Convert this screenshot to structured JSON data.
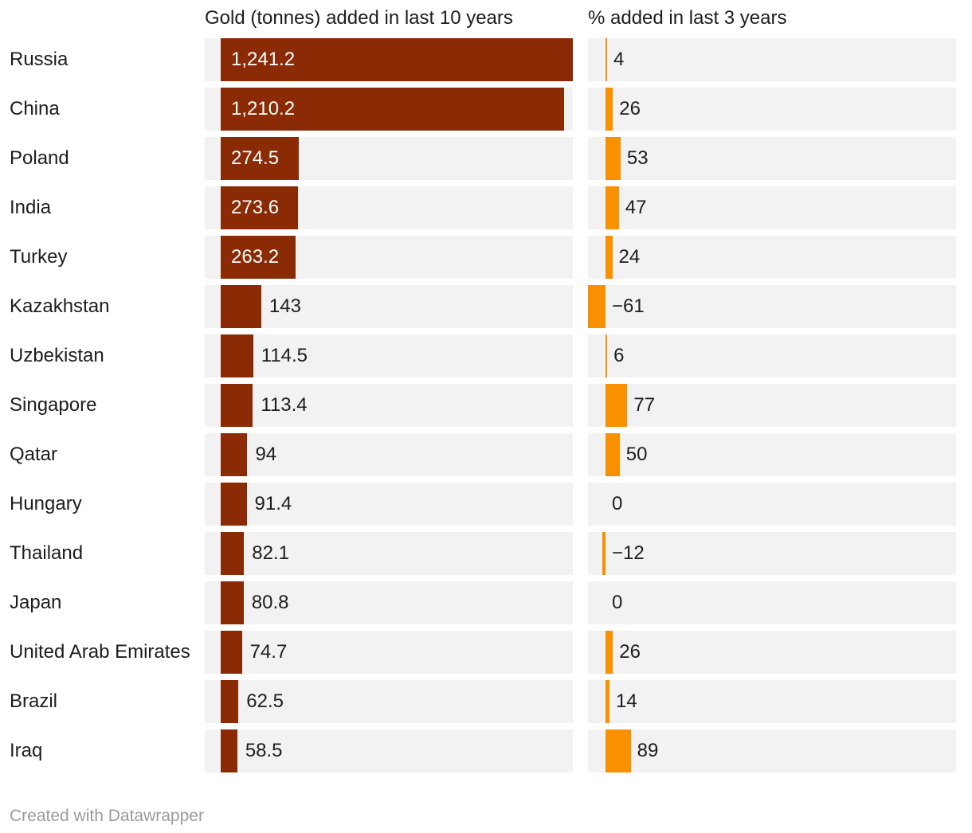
{
  "headers": {
    "col1": "Gold (tonnes) added in last 10 years",
    "col2": "% added in last 3 years"
  },
  "footer": {
    "credit": "Created with Datawrapper"
  },
  "colors": {
    "gold_bar": "#8a2b06",
    "pct_bar": "#f89000",
    "track": "#f2f2f2",
    "text": "#1d1d1d",
    "bar_label_inside": "#ffffff",
    "footer_text": "#9b9b9b"
  },
  "chart_data": {
    "type": "bar",
    "orientation": "horizontal",
    "variant": "split-bars-table",
    "grid": false,
    "legend_position": "column-headers",
    "categories": [
      "Russia",
      "China",
      "Poland",
      "India",
      "Turkey",
      "Kazakhstan",
      "Uzbekistan",
      "Singapore",
      "Qatar",
      "Hungary",
      "Thailand",
      "Japan",
      "United Arab Emirates",
      "Brazil",
      "Iraq"
    ],
    "series": [
      {
        "name": "Gold (tonnes) added in last 10 years",
        "color": "#8a2b06",
        "values": [
          1241.2,
          1210.2,
          274.5,
          273.6,
          263.2,
          143,
          114.5,
          113.4,
          94,
          91.4,
          82.1,
          80.8,
          74.7,
          62.5,
          58.5
        ],
        "labels": [
          "1,241.2",
          "1,210.2",
          "274.5",
          "273.6",
          "263.2",
          "143",
          "114.5",
          "113.4",
          "94",
          "91.4",
          "82.1",
          "80.8",
          "74.7",
          "62.5",
          "58.5"
        ],
        "axis_range": [
          0,
          1241.2
        ]
      },
      {
        "name": "% added in last 3 years",
        "color": "#f89000",
        "values": [
          4,
          26,
          53,
          47,
          24,
          -61,
          6,
          77,
          50,
          0,
          -12,
          0,
          26,
          14,
          89
        ],
        "labels": [
          "4",
          "26",
          "53",
          "47",
          "24",
          "−61",
          "6",
          "77",
          "50",
          "0",
          "−12",
          "0",
          "26",
          "14",
          "89"
        ],
        "axis_range": [
          -61,
          89
        ]
      }
    ]
  }
}
